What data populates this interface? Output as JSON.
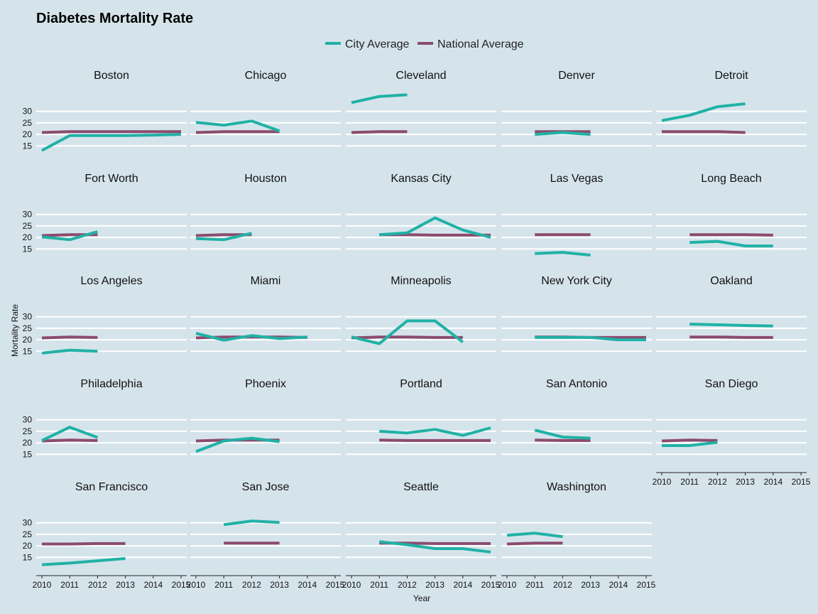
{
  "chart_data": {
    "type": "line",
    "title": "Diabetes Mortality Rate",
    "xlabel": "Year",
    "ylabel": "Mortality Rate",
    "x": [
      2010,
      2011,
      2012,
      2013,
      2014,
      2015
    ],
    "x_ticks": [
      "2010",
      "2011",
      "2012",
      "2013",
      "2014",
      "2015"
    ],
    "y_ticks": [
      15,
      20,
      25,
      30
    ],
    "ylim": [
      12,
      33
    ],
    "xlim": [
      2010,
      2015
    ],
    "legend": {
      "placement": "top",
      "entries": [
        {
          "name": "City Average",
          "color": "#21b1a6"
        },
        {
          "name": "National Average",
          "color": "#8b4b6e"
        }
      ]
    },
    "grid": true,
    "facets": [
      {
        "name": "Boston",
        "city": [
          [
            2010,
            13
          ],
          [
            2011,
            19.5
          ],
          [
            2012,
            19.5
          ],
          [
            2013,
            19.5
          ],
          [
            2014,
            19.7
          ],
          [
            2015,
            20
          ]
        ],
        "national": [
          [
            2010,
            20.8
          ],
          [
            2011,
            21.2
          ],
          [
            2012,
            21.2
          ],
          [
            2013,
            21.2
          ],
          [
            2014,
            21.2
          ],
          [
            2015,
            21.2
          ]
        ]
      },
      {
        "name": "Chicago",
        "city": [
          [
            2010,
            25.2
          ],
          [
            2011,
            24
          ],
          [
            2012,
            25.8
          ],
          [
            2013,
            21.5
          ]
        ],
        "national": [
          [
            2010,
            20.8
          ],
          [
            2011,
            21.2
          ],
          [
            2012,
            21.2
          ],
          [
            2013,
            21.2
          ]
        ]
      },
      {
        "name": "Cleveland",
        "city": [
          [
            2010,
            33.8
          ],
          [
            2011,
            36.5
          ],
          [
            2012,
            37.2
          ]
        ],
        "national": [
          [
            2010,
            20.8
          ],
          [
            2011,
            21.2
          ],
          [
            2012,
            21.2
          ]
        ]
      },
      {
        "name": "Denver",
        "city": [
          [
            2011,
            20
          ],
          [
            2012,
            20.8
          ],
          [
            2013,
            20
          ]
        ],
        "national": [
          [
            2011,
            21.2
          ],
          [
            2012,
            21.2
          ],
          [
            2013,
            21.2
          ]
        ]
      },
      {
        "name": "Detroit",
        "city": [
          [
            2010,
            26
          ],
          [
            2011,
            28.3
          ],
          [
            2012,
            32
          ],
          [
            2013,
            33.3
          ]
        ],
        "national": [
          [
            2010,
            21.2
          ],
          [
            2011,
            21.2
          ],
          [
            2012,
            21.2
          ],
          [
            2013,
            20.8
          ]
        ]
      },
      {
        "name": "Fort Worth",
        "city": [
          [
            2010,
            20.2
          ],
          [
            2011,
            19
          ],
          [
            2012,
            22.5
          ]
        ],
        "national": [
          [
            2010,
            20.8
          ],
          [
            2011,
            21.2
          ],
          [
            2012,
            21.2
          ]
        ]
      },
      {
        "name": "Houston",
        "city": [
          [
            2010,
            19.5
          ],
          [
            2011,
            19
          ],
          [
            2012,
            21.8
          ]
        ],
        "national": [
          [
            2010,
            20.8
          ],
          [
            2011,
            21.2
          ],
          [
            2012,
            21.2
          ]
        ]
      },
      {
        "name": "Kansas City",
        "city": [
          [
            2011,
            21.2
          ],
          [
            2012,
            22
          ],
          [
            2013,
            28.5
          ],
          [
            2014,
            23.2
          ],
          [
            2015,
            20
          ]
        ],
        "national": [
          [
            2011,
            21.2
          ],
          [
            2012,
            21.2
          ],
          [
            2013,
            21
          ],
          [
            2014,
            21
          ],
          [
            2015,
            21
          ]
        ]
      },
      {
        "name": "Las Vegas",
        "city": [
          [
            2011,
            13
          ],
          [
            2012,
            13.5
          ],
          [
            2013,
            12.3
          ]
        ],
        "national": [
          [
            2011,
            21.2
          ],
          [
            2012,
            21.2
          ],
          [
            2013,
            21.2
          ]
        ]
      },
      {
        "name": "Long Beach",
        "city": [
          [
            2011,
            17.8
          ],
          [
            2012,
            18.3
          ],
          [
            2013,
            16.3
          ],
          [
            2014,
            16.3
          ]
        ],
        "national": [
          [
            2011,
            21.2
          ],
          [
            2012,
            21.2
          ],
          [
            2013,
            21.2
          ],
          [
            2014,
            21
          ]
        ]
      },
      {
        "name": "Los Angeles",
        "city": [
          [
            2010,
            14.2
          ],
          [
            2011,
            15.5
          ],
          [
            2012,
            15
          ]
        ],
        "national": [
          [
            2010,
            20.8
          ],
          [
            2011,
            21.2
          ],
          [
            2012,
            21
          ]
        ]
      },
      {
        "name": "Miami",
        "city": [
          [
            2010,
            22.8
          ],
          [
            2011,
            19.8
          ],
          [
            2012,
            21.8
          ],
          [
            2013,
            20.5
          ],
          [
            2014,
            21.2
          ]
        ],
        "national": [
          [
            2010,
            20.8
          ],
          [
            2011,
            21.2
          ],
          [
            2012,
            21.2
          ],
          [
            2013,
            21.2
          ],
          [
            2014,
            21
          ]
        ]
      },
      {
        "name": "Minneapolis",
        "city": [
          [
            2010,
            21.2
          ],
          [
            2011,
            18.3
          ],
          [
            2012,
            28.2
          ],
          [
            2013,
            28.2
          ],
          [
            2014,
            19
          ]
        ],
        "national": [
          [
            2010,
            20.8
          ],
          [
            2011,
            21.2
          ],
          [
            2012,
            21.2
          ],
          [
            2013,
            21
          ],
          [
            2014,
            21
          ]
        ]
      },
      {
        "name": "New York City",
        "city": [
          [
            2011,
            21
          ],
          [
            2012,
            21
          ],
          [
            2013,
            21
          ],
          [
            2014,
            20
          ],
          [
            2015,
            20
          ]
        ],
        "national": [
          [
            2011,
            21.2
          ],
          [
            2012,
            21.2
          ],
          [
            2013,
            21
          ],
          [
            2014,
            21
          ],
          [
            2015,
            21
          ]
        ]
      },
      {
        "name": "Oakland",
        "city": [
          [
            2011,
            26.8
          ],
          [
            2012,
            26.5
          ],
          [
            2013,
            26.2
          ],
          [
            2014,
            26
          ]
        ],
        "national": [
          [
            2011,
            21.2
          ],
          [
            2012,
            21.2
          ],
          [
            2013,
            21
          ],
          [
            2014,
            21
          ]
        ]
      },
      {
        "name": "Philadelphia",
        "city": [
          [
            2010,
            21
          ],
          [
            2011,
            26.8
          ],
          [
            2012,
            22.3
          ]
        ],
        "national": [
          [
            2010,
            20.8
          ],
          [
            2011,
            21.2
          ],
          [
            2012,
            21
          ]
        ]
      },
      {
        "name": "Phoenix",
        "city": [
          [
            2010,
            16.2
          ],
          [
            2011,
            20.8
          ],
          [
            2012,
            22
          ],
          [
            2013,
            20.5
          ]
        ],
        "national": [
          [
            2010,
            20.8
          ],
          [
            2011,
            21.2
          ],
          [
            2012,
            21.2
          ],
          [
            2013,
            21.2
          ]
        ]
      },
      {
        "name": "Portland",
        "city": [
          [
            2011,
            25
          ],
          [
            2012,
            24.3
          ],
          [
            2013,
            25.8
          ],
          [
            2014,
            23.2
          ],
          [
            2015,
            26.5
          ]
        ],
        "national": [
          [
            2011,
            21.2
          ],
          [
            2012,
            21
          ],
          [
            2013,
            21
          ],
          [
            2014,
            21
          ],
          [
            2015,
            21
          ]
        ]
      },
      {
        "name": "San Antonio",
        "city": [
          [
            2011,
            25.5
          ],
          [
            2012,
            22.5
          ],
          [
            2013,
            22
          ]
        ],
        "national": [
          [
            2011,
            21.2
          ],
          [
            2012,
            21
          ],
          [
            2013,
            21
          ]
        ]
      },
      {
        "name": "San Diego",
        "city": [
          [
            2010,
            18.8
          ],
          [
            2011,
            18.8
          ],
          [
            2012,
            20.2
          ]
        ],
        "national": [
          [
            2010,
            20.8
          ],
          [
            2011,
            21.2
          ],
          [
            2012,
            21
          ]
        ]
      },
      {
        "name": "San Francisco",
        "city": [
          [
            2010,
            11.8
          ],
          [
            2011,
            12.5
          ],
          [
            2012,
            13.5
          ],
          [
            2013,
            14.5
          ]
        ],
        "national": [
          [
            2010,
            20.8
          ],
          [
            2011,
            20.8
          ],
          [
            2012,
            21
          ],
          [
            2013,
            21
          ]
        ]
      },
      {
        "name": "San Jose",
        "city": [
          [
            2011,
            29.2
          ],
          [
            2012,
            30.8
          ],
          [
            2013,
            30.2
          ]
        ],
        "national": [
          [
            2011,
            21.2
          ],
          [
            2012,
            21.2
          ],
          [
            2013,
            21.2
          ]
        ]
      },
      {
        "name": "Seattle",
        "city": [
          [
            2011,
            21.8
          ],
          [
            2012,
            20.5
          ],
          [
            2013,
            18.8
          ],
          [
            2014,
            18.8
          ],
          [
            2015,
            17.3
          ]
        ],
        "national": [
          [
            2011,
            21.2
          ],
          [
            2012,
            21.2
          ],
          [
            2013,
            21
          ],
          [
            2014,
            21
          ],
          [
            2015,
            21
          ]
        ]
      },
      {
        "name": "Washington",
        "city": [
          [
            2010,
            24.6
          ],
          [
            2011,
            25.5
          ],
          [
            2012,
            24
          ]
        ],
        "national": [
          [
            2010,
            20.8
          ],
          [
            2011,
            21.2
          ],
          [
            2012,
            21.2
          ]
        ]
      }
    ]
  }
}
